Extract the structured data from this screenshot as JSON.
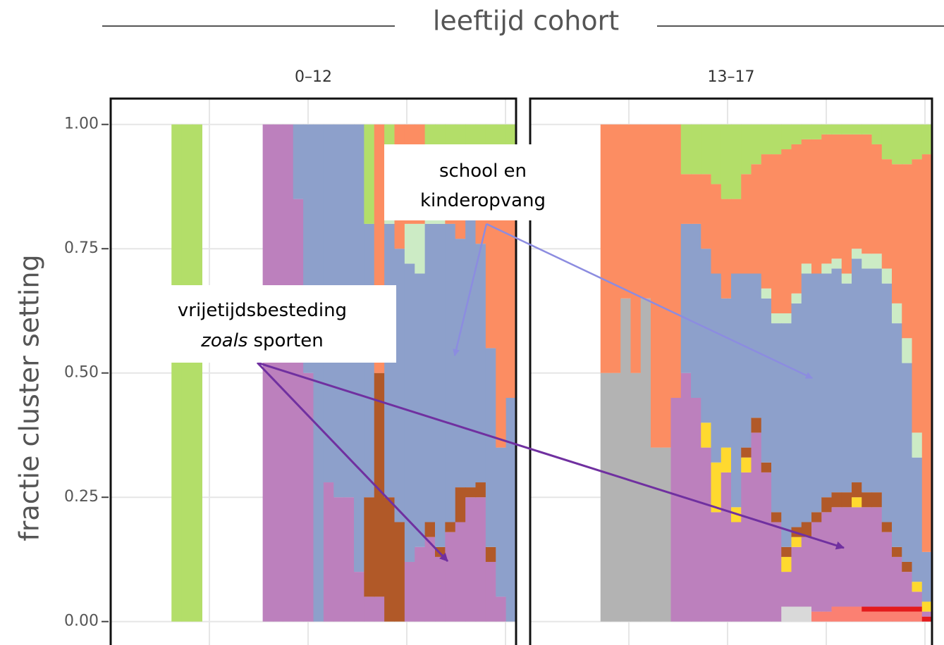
{
  "title": "leeftijd cohort",
  "ylabel": "fractie cluster setting",
  "annotations": [
    {
      "lines": [
        [
          {
            "text": "school en"
          }
        ],
        [
          {
            "text": "kinderopvang"
          }
        ]
      ]
    },
    {
      "lines": [
        [
          {
            "text": "vrijetijdsbesteding"
          }
        ],
        [
          {
            "text": "zoals",
            "italic": true
          },
          {
            "text": "sporten"
          }
        ]
      ]
    }
  ],
  "chart_data": [
    {
      "type": "area",
      "stacked": true,
      "title": "0–12",
      "grid": true,
      "ylim": [
        -0.05,
        1.052
      ],
      "yticks": [
        {
          "value": 0,
          "label": "0.00"
        },
        {
          "value": 0.25,
          "label": "0.25"
        },
        {
          "value": 0.5,
          "label": "0.50"
        },
        {
          "value": 0.75,
          "label": "0.75"
        },
        {
          "value": 1,
          "label": "1.00"
        }
      ],
      "categories": [
        null,
        null,
        null,
        null,
        null,
        null,
        null,
        null,
        null,
        null,
        null,
        null,
        null,
        null,
        null,
        null,
        null,
        null,
        null,
        null,
        null,
        null,
        null,
        null,
        null,
        null,
        null,
        null,
        null,
        null,
        null,
        null,
        null,
        null,
        null,
        null,
        null,
        null,
        null,
        null
      ],
      "series": [
        {
          "color": "#bc80bd",
          "values": [
            0,
            0,
            0,
            0,
            0,
            0,
            0,
            0,
            0,
            0,
            0,
            0,
            0,
            0,
            0,
            1,
            1,
            1,
            0.85,
            0.5,
            0,
            0.28,
            0.25,
            0.25,
            0.1,
            0.05,
            0.05,
            0,
            0,
            0.12,
            0.15,
            0.17,
            0.13,
            0.18,
            0.2,
            0.25,
            0.25,
            0.12,
            0.05,
            0
          ]
        },
        {
          "color": "#b15928",
          "values": [
            0,
            0,
            0,
            0,
            0,
            0,
            0,
            0,
            0,
            0,
            0,
            0,
            0,
            0,
            0,
            0,
            0,
            0,
            0,
            0,
            0,
            0,
            0,
            0,
            0,
            0.2,
            0.45,
            0.25,
            0.2,
            0,
            0,
            0.03,
            0.02,
            0.02,
            0.07,
            0.02,
            0.03,
            0.03,
            0,
            0
          ]
        },
        {
          "color": "#8da0cb",
          "values": [
            0,
            0,
            0,
            0,
            0,
            0,
            0,
            0,
            0,
            0,
            0,
            0,
            0,
            0,
            0,
            0,
            0,
            0,
            0.15,
            0.5,
            1,
            0.72,
            0.75,
            0.75,
            0.9,
            0.55,
            0,
            0.55,
            0.55,
            0.6,
            0.55,
            0.6,
            0.65,
            0.6,
            0.5,
            0.55,
            0.48,
            0.4,
            0.3,
            0.45
          ]
        },
        {
          "color": "#ccebc5",
          "values": [
            0,
            0,
            0,
            0,
            0,
            0,
            0,
            0,
            0,
            0,
            0,
            0,
            0,
            0,
            0,
            0,
            0,
            0,
            0,
            0,
            0,
            0,
            0,
            0,
            0,
            0,
            0,
            0.03,
            0,
            0.08,
            0.1,
            0.05,
            0.02,
            0,
            0,
            0,
            0,
            0,
            0,
            0
          ]
        },
        {
          "color": "#fc8d62",
          "values": [
            0,
            0,
            0,
            0,
            0,
            0,
            0,
            0,
            0,
            0,
            0,
            0,
            0,
            0,
            0,
            0,
            0,
            0,
            0,
            0,
            0,
            0,
            0,
            0,
            0,
            0,
            0.5,
            0,
            0.25,
            0.2,
            0.2,
            0.05,
            0.03,
            0.05,
            0.08,
            0.05,
            0.12,
            0.3,
            0.5,
            0.4
          ]
        },
        {
          "color": "#b3de69",
          "values": [
            0,
            0,
            0,
            0,
            0,
            0,
            1,
            1,
            1,
            0,
            0,
            0,
            0,
            0,
            0,
            0,
            0,
            0,
            0,
            0,
            0,
            0,
            0,
            0,
            0,
            0.2,
            0,
            0.17,
            0,
            0,
            0,
            0.1,
            0.15,
            0.15,
            0.15,
            0.13,
            0.12,
            0.15,
            0.15,
            0.15
          ]
        }
      ]
    },
    {
      "type": "area",
      "stacked": true,
      "title": "13–17",
      "grid": true,
      "ylim": [
        -0.05,
        1.052
      ],
      "categories": [
        null,
        null,
        null,
        null,
        null,
        null,
        null,
        null,
        null,
        null,
        null,
        null,
        null,
        null,
        null,
        null,
        null,
        null,
        null,
        null,
        null,
        null,
        null,
        null,
        null,
        null,
        null,
        null,
        null,
        null,
        null,
        null,
        null,
        null,
        null,
        null,
        null,
        null,
        null,
        null
      ],
      "series": [
        {
          "color": "#d9d9d9",
          "values": [
            0,
            0,
            0,
            0,
            0,
            0,
            0,
            0,
            0,
            0,
            0,
            0,
            0,
            0,
            0,
            0,
            0,
            0,
            0,
            0,
            0,
            0,
            0,
            0,
            0,
            0.03,
            0.03,
            0.03,
            0,
            0,
            0,
            0,
            0,
            0,
            0,
            0,
            0,
            0,
            0,
            0
          ]
        },
        {
          "color": "#fb8072",
          "values": [
            0,
            0,
            0,
            0,
            0,
            0,
            0,
            0,
            0,
            0,
            0,
            0,
            0,
            0,
            0,
            0,
            0,
            0,
            0,
            0,
            0,
            0,
            0,
            0,
            0,
            0,
            0,
            0,
            0.02,
            0.02,
            0.03,
            0.03,
            0.03,
            0.02,
            0.02,
            0.02,
            0.02,
            0.02,
            0.02,
            0
          ]
        },
        {
          "color": "#e41a1c",
          "values": [
            0,
            0,
            0,
            0,
            0,
            0,
            0,
            0,
            0,
            0,
            0,
            0,
            0,
            0,
            0,
            0,
            0,
            0,
            0,
            0,
            0,
            0,
            0,
            0,
            0,
            0,
            0,
            0,
            0,
            0,
            0,
            0,
            0,
            0.01,
            0.01,
            0.01,
            0.01,
            0.01,
            0.01,
            0.01
          ]
        },
        {
          "color": "#b3b3b3",
          "values": [
            0,
            0,
            0,
            0,
            0,
            0,
            0,
            0.5,
            0.5,
            0.65,
            0.5,
            0.65,
            0.35,
            0.35,
            0,
            0,
            0,
            0,
            0,
            0,
            0,
            0,
            0,
            0,
            0,
            0,
            0,
            0,
            0,
            0,
            0,
            0,
            0,
            0,
            0,
            0,
            0,
            0,
            0,
            0
          ]
        },
        {
          "color": "#bc80bd",
          "values": [
            0,
            0,
            0,
            0,
            0,
            0,
            0,
            0,
            0,
            0,
            0,
            0,
            0,
            0,
            0.45,
            0.5,
            0.45,
            0.35,
            0.22,
            0.3,
            0.2,
            0.3,
            0.38,
            0.3,
            0.2,
            0.07,
            0.12,
            0.14,
            0.18,
            0.2,
            0.2,
            0.2,
            0.2,
            0.2,
            0.2,
            0.15,
            0.1,
            0.07,
            0.03,
            0.01
          ]
        },
        {
          "color": "#ffd92f",
          "values": [
            0,
            0,
            0,
            0,
            0,
            0,
            0,
            0,
            0,
            0,
            0,
            0,
            0,
            0,
            0,
            0,
            0,
            0.05,
            0.1,
            0.05,
            0.03,
            0.03,
            0,
            0,
            0,
            0.03,
            0.02,
            0,
            0,
            0,
            0,
            0,
            0.02,
            0,
            0,
            0,
            0,
            0,
            0.02,
            0.02
          ]
        },
        {
          "color": "#b15928",
          "values": [
            0,
            0,
            0,
            0,
            0,
            0,
            0,
            0,
            0,
            0,
            0,
            0,
            0,
            0,
            0,
            0,
            0,
            0,
            0,
            0,
            0,
            0.02,
            0.03,
            0.02,
            0.02,
            0.02,
            0.02,
            0.03,
            0.02,
            0.03,
            0.03,
            0.03,
            0.03,
            0.03,
            0.03,
            0.02,
            0.02,
            0.02,
            0,
            0
          ]
        },
        {
          "color": "#8da0cb",
          "values": [
            0,
            0,
            0,
            0,
            0,
            0,
            0,
            0,
            0,
            0,
            0,
            0,
            0,
            0,
            0,
            0.3,
            0.35,
            0.35,
            0.38,
            0.3,
            0.47,
            0.35,
            0.29,
            0.33,
            0.38,
            0.45,
            0.45,
            0.5,
            0.48,
            0.45,
            0.45,
            0.42,
            0.45,
            0.45,
            0.45,
            0.48,
            0.45,
            0.4,
            0.25,
            0.1
          ]
        },
        {
          "color": "#ccebc5",
          "values": [
            0,
            0,
            0,
            0,
            0,
            0,
            0,
            0,
            0,
            0,
            0,
            0,
            0,
            0,
            0,
            0,
            0,
            0,
            0,
            0,
            0,
            0,
            0,
            0.02,
            0.02,
            0.02,
            0.02,
            0.02,
            0,
            0.02,
            0.02,
            0.02,
            0.02,
            0.03,
            0.03,
            0.03,
            0.04,
            0.05,
            0.05,
            0
          ]
        },
        {
          "color": "#fc8d62",
          "values": [
            0,
            0,
            0,
            0,
            0,
            0,
            0,
            0.5,
            0.5,
            0.35,
            0.5,
            0.35,
            0.65,
            0.65,
            0.55,
            0.1,
            0.1,
            0.15,
            0.18,
            0.2,
            0.15,
            0.2,
            0.22,
            0.27,
            0.32,
            0.33,
            0.3,
            0.25,
            0.27,
            0.26,
            0.25,
            0.28,
            0.23,
            0.24,
            0.22,
            0.22,
            0.28,
            0.35,
            0.55,
            0.8
          ]
        },
        {
          "color": "#b3de69",
          "values": [
            0,
            0,
            0,
            0,
            0,
            0,
            0,
            0,
            0,
            0,
            0,
            0,
            0,
            0,
            0,
            0.1,
            0.1,
            0.1,
            0.12,
            0.15,
            0.15,
            0.1,
            0.08,
            0.06,
            0.06,
            0.05,
            0.04,
            0.03,
            0.03,
            0.02,
            0.02,
            0.02,
            0.02,
            0.02,
            0.04,
            0.07,
            0.08,
            0.08,
            0.07,
            0.06
          ]
        }
      ]
    }
  ]
}
